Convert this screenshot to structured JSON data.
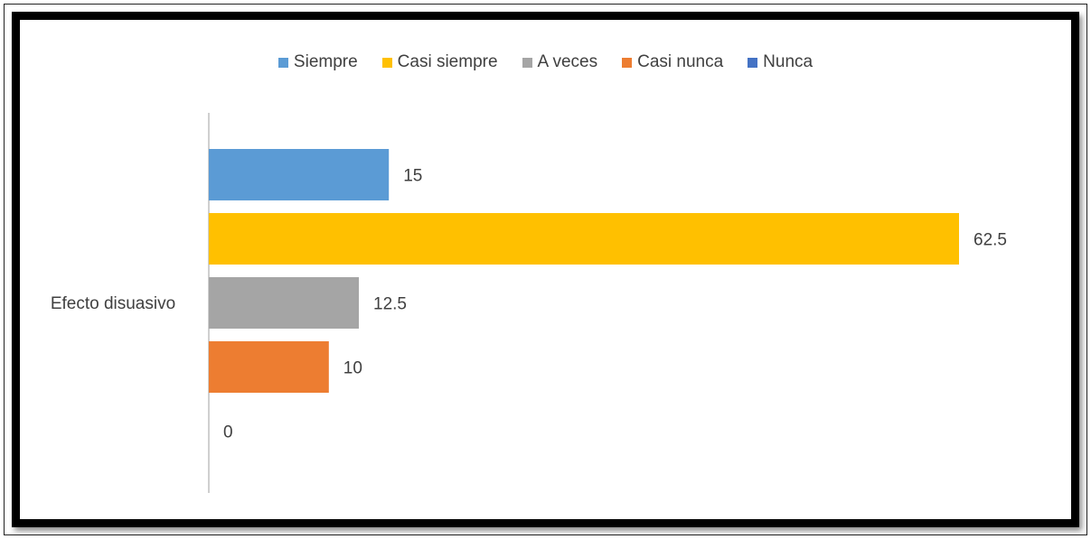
{
  "chart_data": {
    "type": "bar",
    "orientation": "horizontal",
    "categories": [
      "Efecto disuasivo"
    ],
    "series": [
      {
        "name": "Siempre",
        "values": [
          15
        ],
        "color": "#5b9bd5"
      },
      {
        "name": "Casi siempre",
        "values": [
          62.5
        ],
        "color": "#ffc000"
      },
      {
        "name": "A veces",
        "values": [
          12.5
        ],
        "color": "#a5a5a5"
      },
      {
        "name": "Casi nunca",
        "values": [
          10
        ],
        "color": "#ed7d31"
      },
      {
        "name": "Nunca",
        "values": [
          0
        ],
        "color": "#4472c4"
      }
    ],
    "data_labels": [
      "15",
      "62.5",
      "12.5",
      "10",
      "0"
    ],
    "title": "",
    "xlabel": "",
    "ylabel": "",
    "xlim": [
      0,
      63
    ],
    "grid": false,
    "legend_position": "top"
  }
}
